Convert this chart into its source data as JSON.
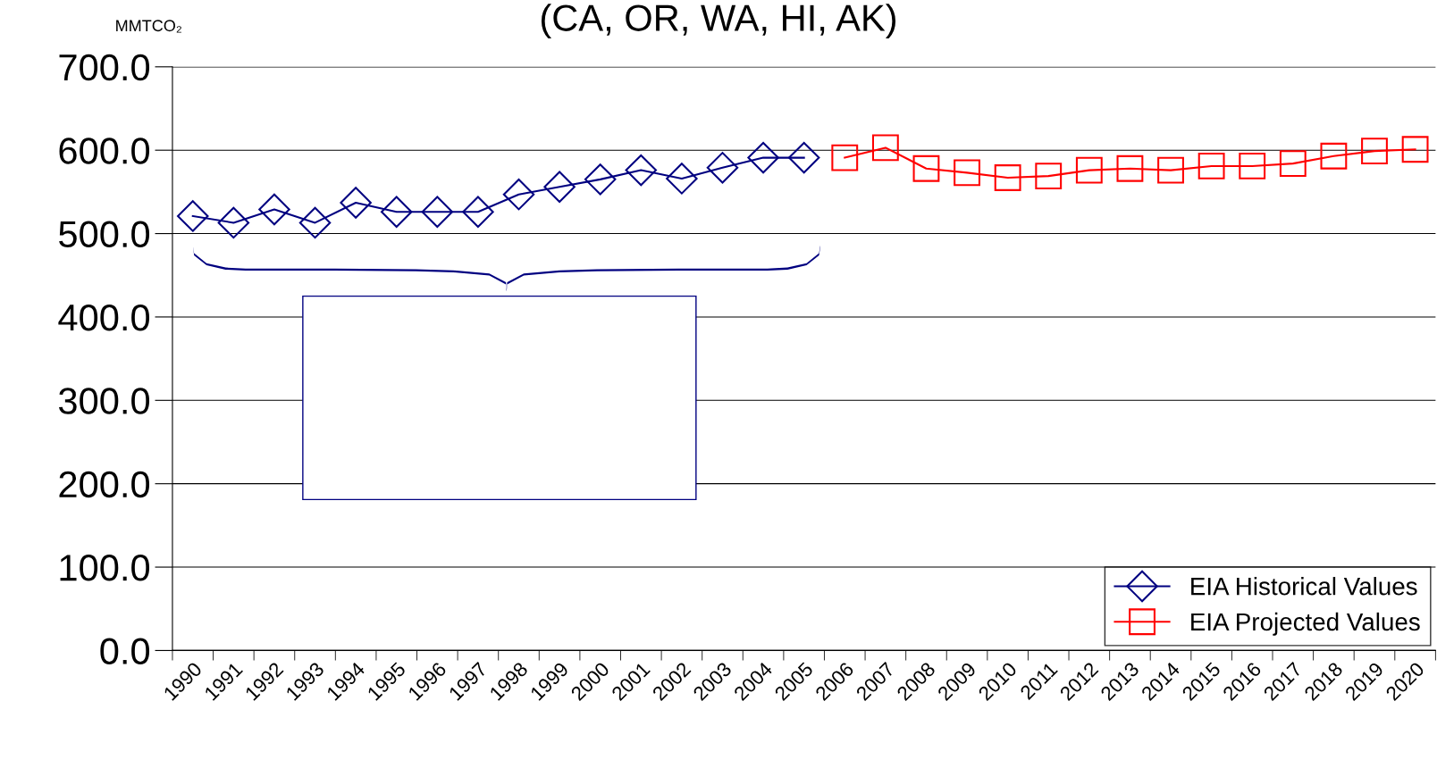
{
  "chart_data": {
    "type": "line",
    "title": "(CA, OR, WA, HI, AK)",
    "ylabel": "MMTCO₂",
    "categories": [
      "1990",
      "1991",
      "1992",
      "1993",
      "1994",
      "1995",
      "1996",
      "1997",
      "1998",
      "1999",
      "2000",
      "2001",
      "2002",
      "2003",
      "2004",
      "2005",
      "2006",
      "2007",
      "2008",
      "2009",
      "2010",
      "2011",
      "2012",
      "2013",
      "2014",
      "2015",
      "2016",
      "2017",
      "2018",
      "2019",
      "2020"
    ],
    "series": [
      {
        "name": "EIA Historical Values",
        "color": "#000080",
        "marker": "diamond",
        "values": [
          521,
          513,
          529,
          513,
          537,
          526,
          526,
          526,
          547,
          556,
          565,
          576,
          566,
          579,
          591,
          591,
          null,
          null,
          null,
          null,
          null,
          null,
          null,
          null,
          null,
          null,
          null,
          null,
          null,
          null,
          null
        ]
      },
      {
        "name": "EIA Projected Values",
        "color": "#ff0000",
        "marker": "square",
        "values": [
          null,
          null,
          null,
          null,
          null,
          null,
          null,
          null,
          null,
          null,
          null,
          null,
          null,
          null,
          null,
          null,
          591,
          603,
          578,
          573,
          567,
          569,
          576,
          578,
          576,
          581,
          581,
          584,
          593,
          599,
          601
        ]
      }
    ],
    "ylim": [
      0,
      700
    ],
    "yticks": [
      {
        "value": 0,
        "label": "0.0"
      },
      {
        "value": 100,
        "label": "100.0"
      },
      {
        "value": 200,
        "label": "200.0"
      },
      {
        "value": 300,
        "label": "300.0"
      },
      {
        "value": 400,
        "label": "400.0"
      },
      {
        "value": 500,
        "label": "500.0"
      },
      {
        "value": 600,
        "label": "600.0"
      },
      {
        "value": 700,
        "label": "700.0"
      }
    ],
    "grid": "y",
    "legend": "bottom right"
  }
}
